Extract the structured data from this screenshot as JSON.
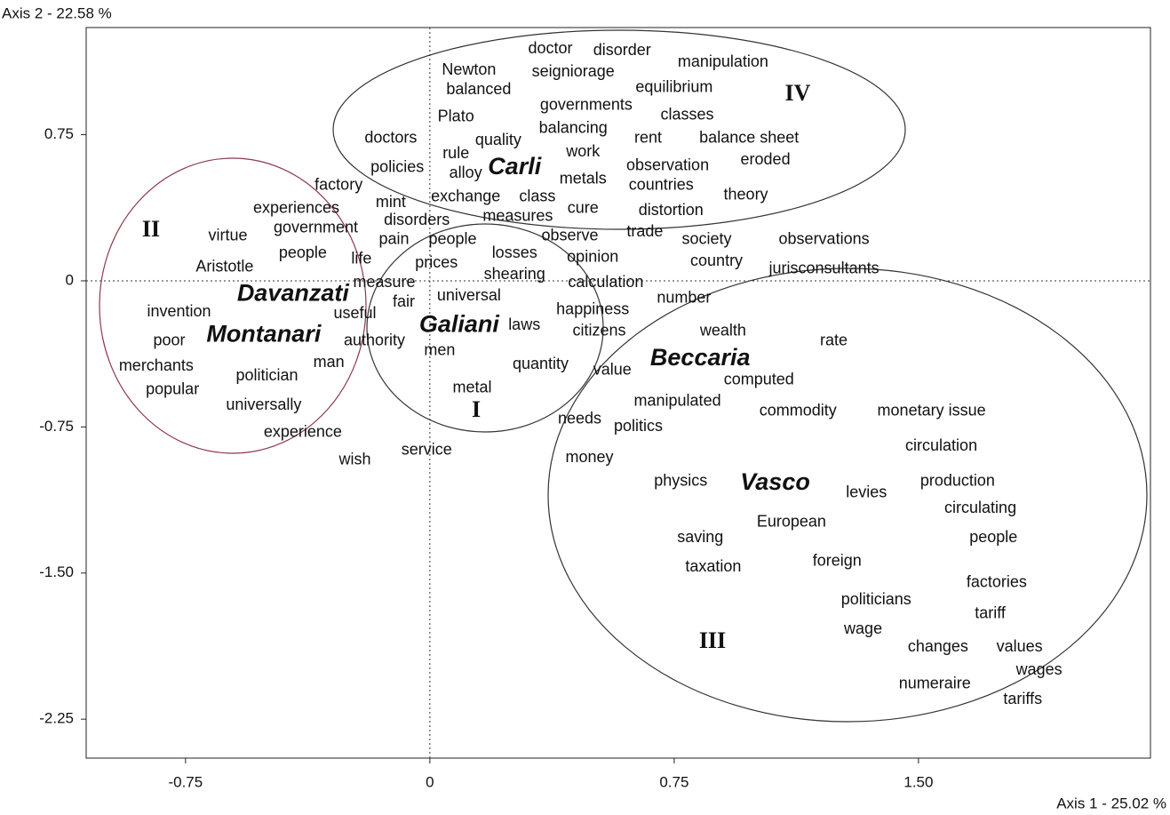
{
  "chart_data": {
    "type": "scatter",
    "x_label": "Axis 1 - 25.02 %",
    "y_label": "Axis 2 - 22.58 %",
    "xlim": [
      -1.055,
      2.212
    ],
    "ylim": [
      -2.45,
      1.3
    ],
    "xticks": [
      -0.75,
      0,
      0.75,
      {
        "value": 1.5,
        "label": "1.50"
      }
    ],
    "yticks": [
      0.75,
      0,
      -0.75,
      {
        "value": -1.5,
        "label": "-1.50"
      },
      -2.25
    ],
    "zero_lines": true,
    "annotations": [
      "IV",
      "II",
      "I",
      "III"
    ],
    "author_points": [
      {
        "label": "Carli",
        "x": 0.26,
        "y": 0.58
      },
      {
        "label": "Davanzati",
        "x": -0.42,
        "y": -0.07
      },
      {
        "label": "Montanari",
        "x": -0.51,
        "y": -0.28
      },
      {
        "label": "Galiani",
        "x": 0.09,
        "y": -0.23
      },
      {
        "label": "Beccaria",
        "x": 0.83,
        "y": -0.4
      },
      {
        "label": "Vasco",
        "x": 1.06,
        "y": -1.04
      }
    ],
    "points": [
      {
        "label": "doctor",
        "x": 0.37,
        "y": 1.19
      },
      {
        "label": "disorder",
        "x": 0.59,
        "y": 1.18
      },
      {
        "label": "manipulation",
        "x": 0.9,
        "y": 1.12
      },
      {
        "label": "Newton",
        "x": 0.12,
        "y": 1.08
      },
      {
        "label": "seigniorage",
        "x": 0.44,
        "y": 1.07
      },
      {
        "label": "balanced",
        "x": 0.15,
        "y": 0.98
      },
      {
        "label": "equilibrium",
        "x": 0.75,
        "y": 0.99
      },
      {
        "label": "governments",
        "x": 0.48,
        "y": 0.9
      },
      {
        "label": "Plato",
        "x": 0.08,
        "y": 0.84
      },
      {
        "label": "classes",
        "x": 0.79,
        "y": 0.85
      },
      {
        "label": "balancing",
        "x": 0.44,
        "y": 0.78
      },
      {
        "label": "doctors",
        "x": -0.12,
        "y": 0.73
      },
      {
        "label": "quality",
        "x": 0.21,
        "y": 0.72
      },
      {
        "label": "rent",
        "x": 0.67,
        "y": 0.73
      },
      {
        "label": "balance sheet",
        "x": 0.98,
        "y": 0.73
      },
      {
        "label": "work",
        "x": 0.47,
        "y": 0.66
      },
      {
        "label": "rule",
        "x": 0.08,
        "y": 0.65
      },
      {
        "label": "alloy",
        "x": 0.11,
        "y": 0.55
      },
      {
        "label": "metals",
        "x": 0.47,
        "y": 0.52
      },
      {
        "label": "observation",
        "x": 0.73,
        "y": 0.59
      },
      {
        "label": "eroded",
        "x": 1.03,
        "y": 0.62
      },
      {
        "label": "policies",
        "x": -0.1,
        "y": 0.58
      },
      {
        "label": "countries",
        "x": 0.71,
        "y": 0.49
      },
      {
        "label": "factory",
        "x": -0.28,
        "y": 0.49
      },
      {
        "label": "exchange",
        "x": 0.11,
        "y": 0.43
      },
      {
        "label": "class",
        "x": 0.33,
        "y": 0.43
      },
      {
        "label": "theory",
        "x": 0.97,
        "y": 0.44
      },
      {
        "label": "mint",
        "x": -0.12,
        "y": 0.4
      },
      {
        "label": "experiences",
        "x": -0.41,
        "y": 0.37
      },
      {
        "label": "cure",
        "x": 0.47,
        "y": 0.37
      },
      {
        "label": "distortion",
        "x": 0.74,
        "y": 0.36
      },
      {
        "label": "measures",
        "x": 0.27,
        "y": 0.33
      },
      {
        "label": "disorders",
        "x": -0.04,
        "y": 0.31
      },
      {
        "label": "government",
        "x": -0.35,
        "y": 0.27
      },
      {
        "label": "virtue",
        "x": -0.62,
        "y": 0.23
      },
      {
        "label": "pain",
        "x": -0.11,
        "y": 0.21
      },
      {
        "label": "people",
        "x": 0.07,
        "y": 0.21
      },
      {
        "label": "observe",
        "x": 0.43,
        "y": 0.23
      },
      {
        "label": "trade",
        "x": 0.66,
        "y": 0.25
      },
      {
        "label": "society",
        "x": 0.85,
        "y": 0.21
      },
      {
        "label": "observations",
        "x": 1.21,
        "y": 0.21
      },
      {
        "label": "losses",
        "x": 0.26,
        "y": 0.14
      },
      {
        "label": "people",
        "x": -0.39,
        "y": 0.14
      },
      {
        "label": "life",
        "x": -0.21,
        "y": 0.11
      },
      {
        "label": "opinion",
        "x": 0.5,
        "y": 0.12
      },
      {
        "label": "country",
        "x": 0.88,
        "y": 0.1
      },
      {
        "label": "prices",
        "x": 0.02,
        "y": 0.09
      },
      {
        "label": "Aristotle",
        "x": -0.63,
        "y": 0.07
      },
      {
        "label": "jurisconsultants",
        "x": 1.21,
        "y": 0.06
      },
      {
        "label": "shearing",
        "x": 0.26,
        "y": 0.03
      },
      {
        "label": "measure",
        "x": -0.14,
        "y": -0.01
      },
      {
        "label": "calculation",
        "x": 0.54,
        "y": -0.01
      },
      {
        "label": "universal",
        "x": 0.12,
        "y": -0.08
      },
      {
        "label": "fair",
        "x": -0.08,
        "y": -0.11
      },
      {
        "label": "number",
        "x": 0.78,
        "y": -0.09
      },
      {
        "label": "invention",
        "x": -0.77,
        "y": -0.16
      },
      {
        "label": "useful",
        "x": -0.23,
        "y": -0.17
      },
      {
        "label": "happiness",
        "x": 0.5,
        "y": -0.15
      },
      {
        "label": "laws",
        "x": 0.29,
        "y": -0.23
      },
      {
        "label": "citizens",
        "x": 0.52,
        "y": -0.26
      },
      {
        "label": "wealth",
        "x": 0.9,
        "y": -0.26
      },
      {
        "label": "poor",
        "x": -0.8,
        "y": -0.31
      },
      {
        "label": "authority",
        "x": -0.17,
        "y": -0.31
      },
      {
        "label": "rate",
        "x": 1.24,
        "y": -0.31
      },
      {
        "label": "men",
        "x": 0.03,
        "y": -0.36
      },
      {
        "label": "man",
        "x": -0.31,
        "y": -0.42
      },
      {
        "label": "quantity",
        "x": 0.34,
        "y": -0.43
      },
      {
        "label": "value",
        "x": 0.56,
        "y": -0.46
      },
      {
        "label": "merchants",
        "x": -0.84,
        "y": -0.44
      },
      {
        "label": "politician",
        "x": -0.5,
        "y": -0.49
      },
      {
        "label": "computed",
        "x": 1.01,
        "y": -0.51
      },
      {
        "label": "metal",
        "x": 0.13,
        "y": -0.55
      },
      {
        "label": "popular",
        "x": -0.79,
        "y": -0.56
      },
      {
        "label": "universally",
        "x": -0.51,
        "y": -0.64
      },
      {
        "label": "manipulated",
        "x": 0.76,
        "y": -0.62
      },
      {
        "label": "commodity",
        "x": 1.13,
        "y": -0.67
      },
      {
        "label": "monetary issue",
        "x": 1.54,
        "y": -0.67
      },
      {
        "label": "needs",
        "x": 0.46,
        "y": -0.71
      },
      {
        "label": "politics",
        "x": 0.64,
        "y": -0.75
      },
      {
        "label": "experience",
        "x": -0.39,
        "y": -0.78
      },
      {
        "label": "circulation",
        "x": 1.57,
        "y": -0.85
      },
      {
        "label": "wish",
        "x": -0.23,
        "y": -0.92
      },
      {
        "label": "service",
        "x": -0.01,
        "y": -0.87
      },
      {
        "label": "money",
        "x": 0.49,
        "y": -0.91
      },
      {
        "label": "physics",
        "x": 0.77,
        "y": -1.03
      },
      {
        "label": "levies",
        "x": 1.34,
        "y": -1.09
      },
      {
        "label": "production",
        "x": 1.62,
        "y": -1.03
      },
      {
        "label": "circulating",
        "x": 1.69,
        "y": -1.17
      },
      {
        "label": "European",
        "x": 1.11,
        "y": -1.24
      },
      {
        "label": "people",
        "x": 1.73,
        "y": -1.32
      },
      {
        "label": "saving",
        "x": 0.83,
        "y": -1.32
      },
      {
        "label": "foreign",
        "x": 1.25,
        "y": -1.44
      },
      {
        "label": "taxation",
        "x": 0.87,
        "y": -1.47
      },
      {
        "label": "factories",
        "x": 1.74,
        "y": -1.55
      },
      {
        "label": "politicians",
        "x": 1.37,
        "y": -1.64
      },
      {
        "label": "tariff",
        "x": 1.72,
        "y": -1.71
      },
      {
        "label": "wage",
        "x": 1.33,
        "y": -1.79
      },
      {
        "label": "changes",
        "x": 1.56,
        "y": -1.88
      },
      {
        "label": "values",
        "x": 1.81,
        "y": -1.88
      },
      {
        "label": "wages",
        "x": 1.87,
        "y": -2.0
      },
      {
        "label": "numeraire",
        "x": 1.55,
        "y": -2.07
      },
      {
        "label": "tariffs",
        "x": 1.82,
        "y": -2.15
      }
    ]
  }
}
